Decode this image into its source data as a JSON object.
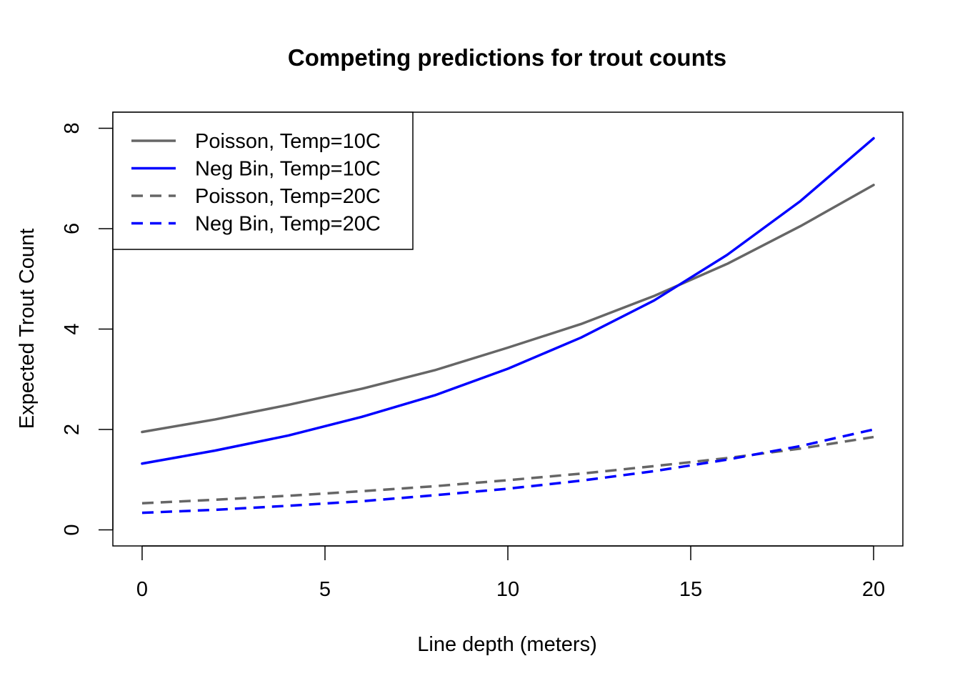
{
  "chart_data": {
    "type": "line",
    "title": "Competing predictions for trout counts",
    "xlabel": "Line depth (meters)",
    "ylabel": "Expected Trout Count",
    "xlim": [
      -0.8,
      20.8
    ],
    "ylim": [
      -0.32,
      8.32
    ],
    "x_ticks": [
      0,
      5,
      10,
      15,
      20
    ],
    "y_ticks": [
      0,
      2,
      4,
      6,
      8
    ],
    "x_tick_labels": [
      "0",
      "5",
      "10",
      "15",
      "20"
    ],
    "y_tick_labels": [
      "0",
      "2",
      "4",
      "6",
      "8"
    ],
    "grid": false,
    "legend_position": "top-left",
    "series": [
      {
        "name": "Poisson, Temp=10C",
        "color": "#666666",
        "dash": "solid",
        "x": [
          0,
          2,
          4,
          6,
          8,
          10,
          12,
          14,
          16,
          18,
          20
        ],
        "y": [
          1.95,
          2.2,
          2.49,
          2.81,
          3.18,
          3.63,
          4.1,
          4.66,
          5.3,
          6.05,
          6.87
        ]
      },
      {
        "name": "Neg Bin, Temp=10C",
        "color": "#0000ff",
        "dash": "solid",
        "x": [
          0,
          2,
          4,
          6,
          8,
          10,
          12,
          14,
          16,
          18,
          20
        ],
        "y": [
          1.32,
          1.58,
          1.88,
          2.25,
          2.68,
          3.21,
          3.83,
          4.57,
          5.48,
          6.55,
          7.8
        ]
      },
      {
        "name": "Poisson, Temp=20C",
        "color": "#666666",
        "dash": "dashed",
        "x": [
          0,
          2,
          4,
          6,
          8,
          10,
          12,
          14,
          16,
          18,
          20
        ],
        "y": [
          0.53,
          0.6,
          0.68,
          0.77,
          0.87,
          0.99,
          1.12,
          1.27,
          1.43,
          1.62,
          1.85
        ]
      },
      {
        "name": "Neg Bin, Temp=20C",
        "color": "#0000ff",
        "dash": "dashed",
        "x": [
          0,
          2,
          4,
          6,
          8,
          10,
          12,
          14,
          16,
          18,
          20
        ],
        "y": [
          0.34,
          0.4,
          0.48,
          0.57,
          0.69,
          0.82,
          0.98,
          1.17,
          1.4,
          1.67,
          2.0
        ]
      }
    ]
  }
}
